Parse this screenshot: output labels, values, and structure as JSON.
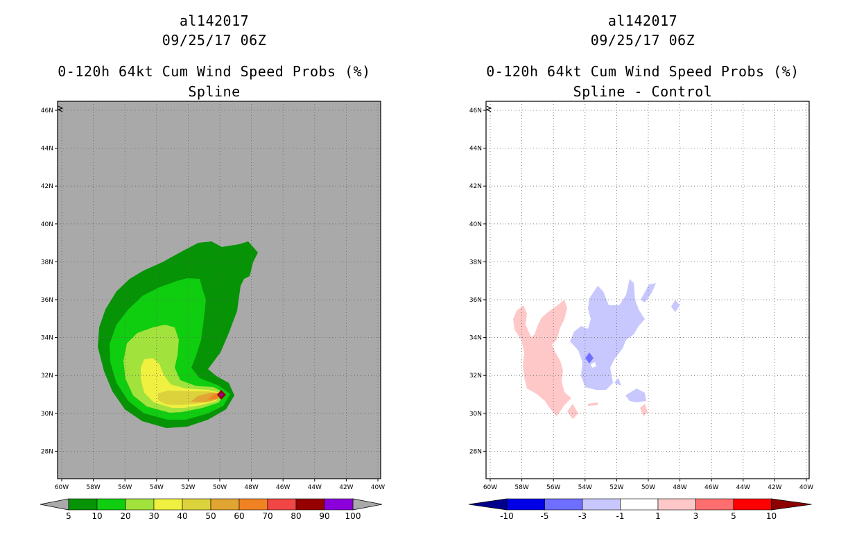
{
  "panels": [
    {
      "storm_id": "al142017",
      "date_time": "09/25/17 06Z",
      "product": "0-120h 64kt Cum Wind Speed Probs (%)",
      "subtitle": "Spline",
      "background_color": "#a9a9a9",
      "colorbar": {
        "labels": [
          "5",
          "10",
          "20",
          "30",
          "40",
          "50",
          "60",
          "70",
          "80",
          "90",
          "100"
        ],
        "colors": [
          "#069306",
          "#0fcd0f",
          "#a2e23c",
          "#f0f040",
          "#dcd23c",
          "#e1a632",
          "#f08223",
          "#f04646",
          "#960000",
          "#8c00dc"
        ]
      }
    },
    {
      "storm_id": "al142017",
      "date_time": "09/25/17 06Z",
      "product": "0-120h 64kt Cum Wind Speed Probs (%)",
      "subtitle": "Spline - Control",
      "background_color": "#ffffff",
      "colorbar": {
        "labels": [
          "-10",
          "-5",
          "-3",
          "-1",
          "1",
          "3",
          "5",
          "10"
        ],
        "colors": [
          "#0000e6",
          "#6e6eff",
          "#c8c8ff",
          "#ffffff",
          "#ffc8c8",
          "#ff6e6e",
          "#ff0000"
        ],
        "end_colors": [
          "#00008c",
          "#8c0000"
        ]
      }
    }
  ],
  "axes": {
    "lat_labels": [
      "46N",
      "44N",
      "42N",
      "40N",
      "38N",
      "36N",
      "34N",
      "32N",
      "30N",
      "28N"
    ],
    "lon_labels": [
      "60W",
      "58W",
      "56W",
      "54W",
      "52W",
      "50W",
      "48W",
      "46W",
      "44W",
      "42W",
      "40W"
    ]
  }
}
